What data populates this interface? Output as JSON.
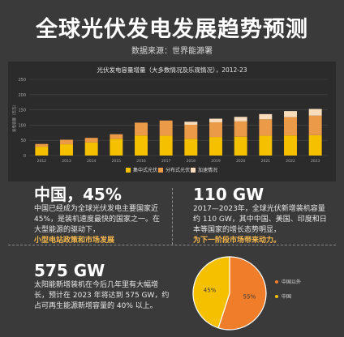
{
  "header": {
    "title": "全球光伏发电发展趋势预测",
    "source": "数据来源：世界能源署"
  },
  "chart_data": [
    {
      "type": "bar",
      "stacked": true,
      "title": "光伏发电容量增量（大多数情况及乐观情况），2012-23",
      "categories": [
        "2012",
        "2013",
        "2014",
        "2015",
        "2016",
        "2017",
        "2018",
        "2019",
        "2020",
        "2021",
        "2022",
        "2023"
      ],
      "series": [
        {
          "name": "集中式光伏",
          "color": "#f5c000",
          "values": [
            29,
            37,
            43,
            55,
            66,
            65,
            55,
            61,
            62,
            65,
            66,
            67
          ]
        },
        {
          "name": "分布式光伏",
          "color": "#eb9a48",
          "values": [
            9,
            15,
            15,
            15,
            42,
            50,
            46,
            48,
            50,
            54,
            60,
            64
          ]
        },
        {
          "name": "加速情况",
          "color": "#f8dcbc",
          "values": [
            0,
            0,
            0,
            0,
            0,
            0,
            10,
            12,
            15,
            17,
            20,
            22
          ]
        }
      ],
      "ylim": [
        0,
        250
      ],
      "yticks": [
        0,
        50,
        100,
        150,
        200,
        250
      ],
      "ylabel": "发电容量（吉瓦）",
      "legend_position": "bottom-center",
      "grid": true
    },
    {
      "type": "pie",
      "categories": [
        "中国以外",
        "中国"
      ],
      "values": [
        55,
        45
      ],
      "value_labels": [
        "55%",
        "45%"
      ],
      "colors": [
        "#f07d2a",
        "#f5c000"
      ],
      "legend_position": "right"
    }
  ],
  "china": {
    "heading": "中国，45%",
    "body": "中国已经成为全球光伏发电主要国家近45%，是装机速度最快的国家之一。在大型能源的驱动下，",
    "highlight": "小型电站政策和市场发展"
  },
  "gw110": {
    "heading": "110 GW",
    "body": "2017—2023年，全球光伏新增装机容量约 110 GW，其中中国、美国、印度和日本等国家的增长态势明显，",
    "highlight": "为下一阶段市场带来动力。"
  },
  "gw575": {
    "heading": "575 GW",
    "body": "太阳能新增装机在今后几年里有大幅增长，预计在 2023 年将达到 575 GW，约占可再生能源新增容量的 40% 以上。"
  }
}
